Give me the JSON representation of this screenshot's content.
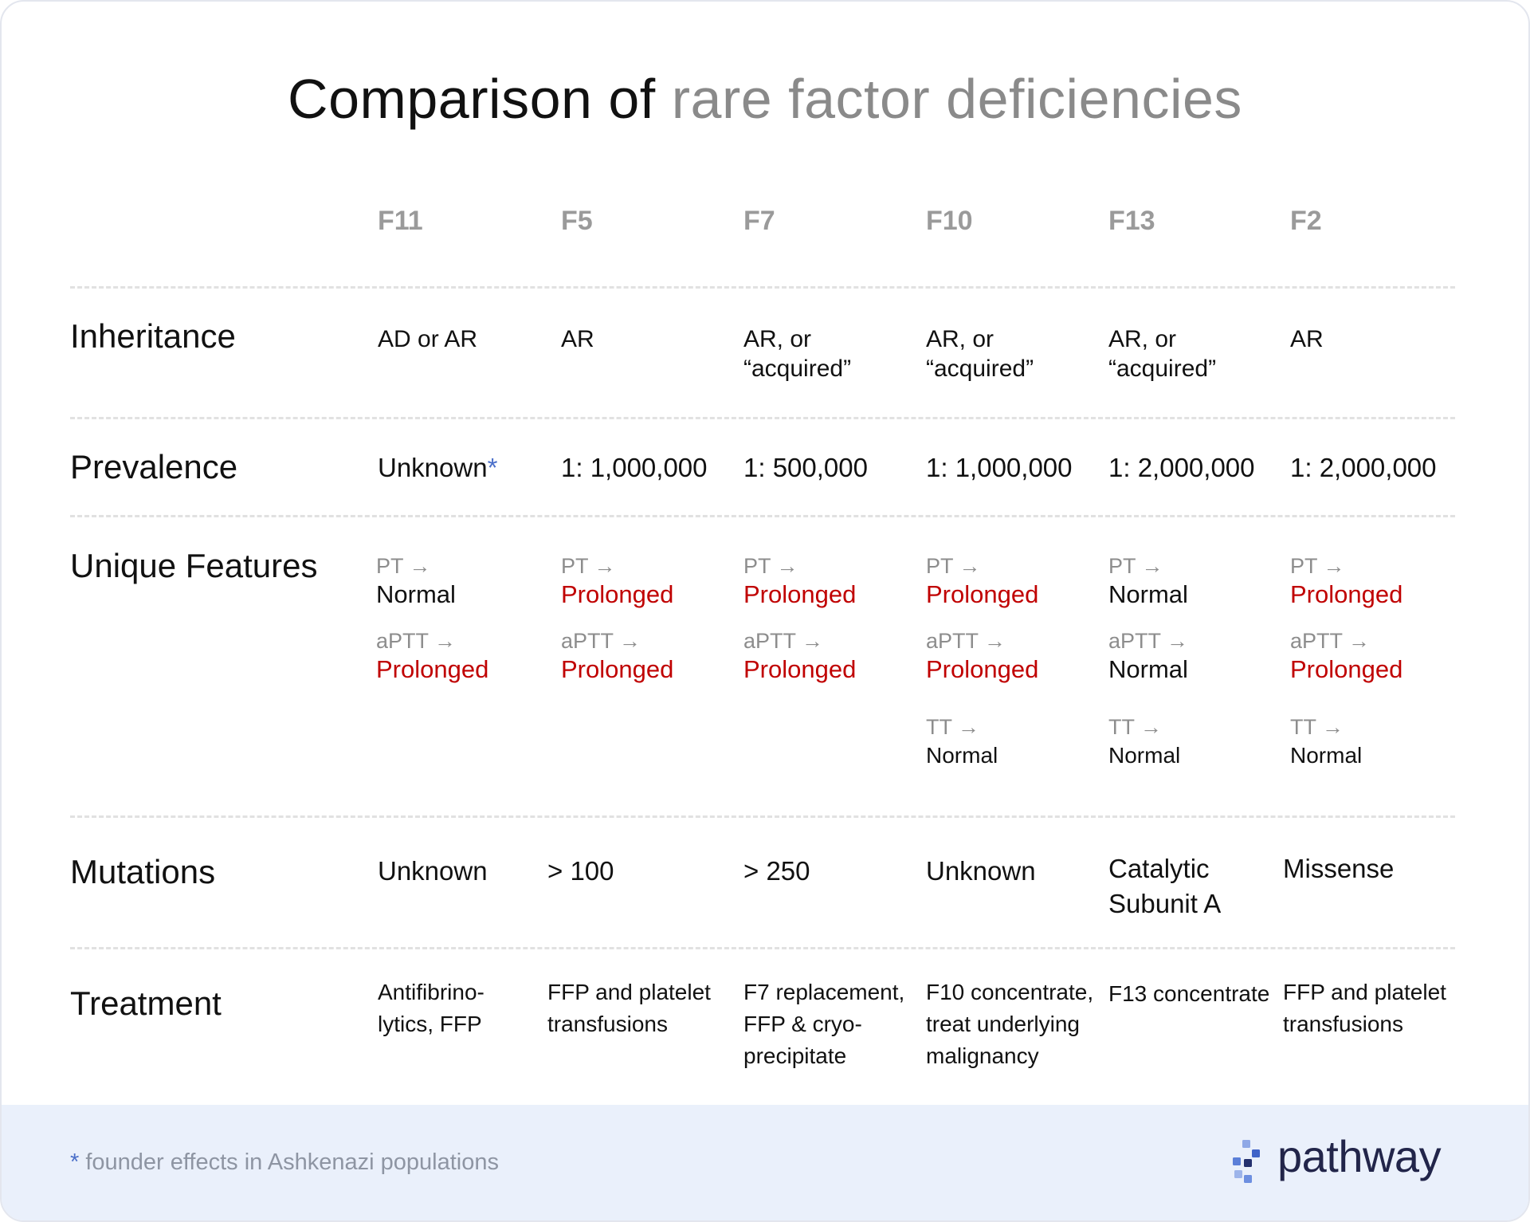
{
  "title": {
    "main": "Comparison of",
    "muted": "rare factor deficiencies"
  },
  "columns": [
    "F11",
    "F5",
    "F7",
    "F10",
    "F13",
    "F2"
  ],
  "rows": {
    "inheritance": {
      "label": "Inheritance",
      "cells": [
        [
          "AD or AR"
        ],
        [
          "AR"
        ],
        [
          "AR, or",
          "“acquired”"
        ],
        [
          "AR, or",
          "“acquired”"
        ],
        [
          "AR, or",
          "“acquired”"
        ],
        [
          "AR"
        ]
      ]
    },
    "prevalence": {
      "label": "Prevalence",
      "cells": [
        "Unknown",
        "1: 1,000,000",
        "1: 500,000",
        "1: 1,000,000",
        "1: 2,000,000",
        "1: 2,000,000"
      ],
      "asterisk": "*"
    },
    "features": {
      "label": "Unique Features",
      "labels": {
        "pt": "PT →",
        "aptt": "aPTT →",
        "tt": "TT →"
      },
      "cells": [
        {
          "pt": "Normal",
          "pt_status": "normal",
          "aptt": "Prolonged",
          "aptt_status": "prolonged",
          "tt": null
        },
        {
          "pt": "Prolonged",
          "pt_status": "prolonged",
          "aptt": "Prolonged",
          "aptt_status": "prolonged",
          "tt": null
        },
        {
          "pt": "Prolonged",
          "pt_status": "prolonged",
          "aptt": "Prolonged",
          "aptt_status": "prolonged",
          "tt": null
        },
        {
          "pt": "Prolonged",
          "pt_status": "prolonged",
          "aptt": "Prolonged",
          "aptt_status": "prolonged",
          "tt": "Normal"
        },
        {
          "pt": "Normal",
          "pt_status": "normal",
          "aptt": "Normal",
          "aptt_status": "normal",
          "tt": "Normal"
        },
        {
          "pt": "Prolonged",
          "pt_status": "prolonged",
          "aptt": "Prolonged",
          "aptt_status": "prolonged",
          "tt": "Normal"
        }
      ]
    },
    "mutations": {
      "label": "Mutations",
      "cells": [
        [
          "Unknown"
        ],
        [
          "> 100"
        ],
        [
          "> 250"
        ],
        [
          "Unknown"
        ],
        [
          "Catalytic",
          "Subunit A"
        ],
        [
          "Missense"
        ]
      ]
    },
    "treatment": {
      "label": "Treatment",
      "cells": [
        [
          "Antifibrino-",
          "lytics, FFP"
        ],
        [
          "FFP and platelet",
          "transfusions"
        ],
        [
          "F7 replacement,",
          "FFP & cryo-",
          "precipitate"
        ],
        [
          "F10 concentrate,",
          "treat underlying",
          "malignancy"
        ],
        [
          "F13 concentrate"
        ],
        [
          "FFP and platelet",
          "transfusions"
        ]
      ]
    }
  },
  "footer": {
    "footnote_star": "*",
    "footnote": " founder effects in Ashkenazi populations",
    "brand": "pathway"
  },
  "colors": {
    "prolonged": "#c00000",
    "normal": "#111111",
    "muted": "#8a8a8a",
    "accent": "#4b6fc9",
    "footer_bg": "#eaf0fb",
    "brand_text": "#22254a"
  },
  "icons": {
    "brand": "pathway-dots-logo-icon"
  }
}
